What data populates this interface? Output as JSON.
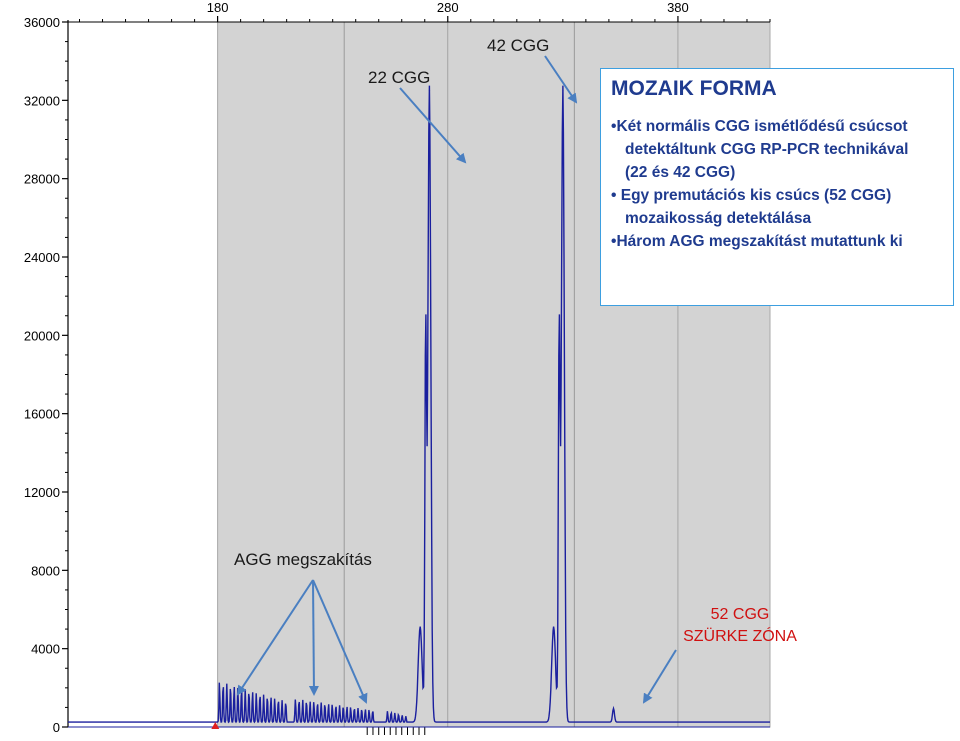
{
  "chart_data": {
    "type": "line",
    "title": "",
    "xlabel": "",
    "ylabel": "",
    "x_ticks": [
      180,
      280,
      380
    ],
    "y_ticks": [
      0,
      4000,
      8000,
      12000,
      16000,
      20000,
      24000,
      28000,
      32000,
      36000
    ],
    "y_tick_labels": [
      "0",
      "4000",
      "8000",
      "12000",
      "16000",
      "20000",
      "24000",
      "28000",
      "32000",
      "36000"
    ],
    "xlim": [
      115,
      420
    ],
    "ylim": [
      0,
      36000
    ],
    "grid": true,
    "background_bins": [
      [
        180,
        280
      ],
      [
        280,
        380
      ],
      [
        380,
        420
      ]
    ],
    "bins_color": "#d3d3d3",
    "trace_color": "#1a1f9e",
    "peaks": [
      {
        "x": 272,
        "height": 32500
      },
      {
        "x": 330,
        "height": 32500
      },
      {
        "x": 352,
        "height": 700
      }
    ],
    "agg_clusters": [
      {
        "x_start": 180,
        "x_end": 210,
        "height": 2100
      },
      {
        "x_start": 213,
        "x_end": 248,
        "height": 1200
      },
      {
        "x_start": 253,
        "x_end": 262,
        "height": 600
      }
    ],
    "annotations": {
      "cgg22": "22 CGG",
      "cgg42": "42 CGG",
      "agg": "AGG megszakítás",
      "cgg52_line1": "52 CGG",
      "cgg52_line2": "SZÜRKE ZÓNA"
    }
  },
  "info_box": {
    "title": "MOZAIK FORMA",
    "lines": [
      {
        "bullet": "•",
        "text": "Két normális CGG ismétlődésű csúcsot"
      },
      {
        "bullet": "",
        "text": "detektáltunk CGG RP-PCR technikával"
      },
      {
        "bullet": "",
        "text": "(22 és 42 CGG)"
      },
      {
        "bullet": "•",
        "text": " Egy premutációs kis csúcs (52 CGG)"
      },
      {
        "bullet": "",
        "text": "mozaikosság detektálása"
      },
      {
        "bullet": "•",
        "text": "Három AGG megszakítást mutattunk ki"
      }
    ]
  },
  "colors": {
    "arrow": "#4a7fc1",
    "axis": "#000000",
    "box_border": "#3d9fe0",
    "box_text": "#1f3b8f",
    "red_text": "#d01010"
  }
}
